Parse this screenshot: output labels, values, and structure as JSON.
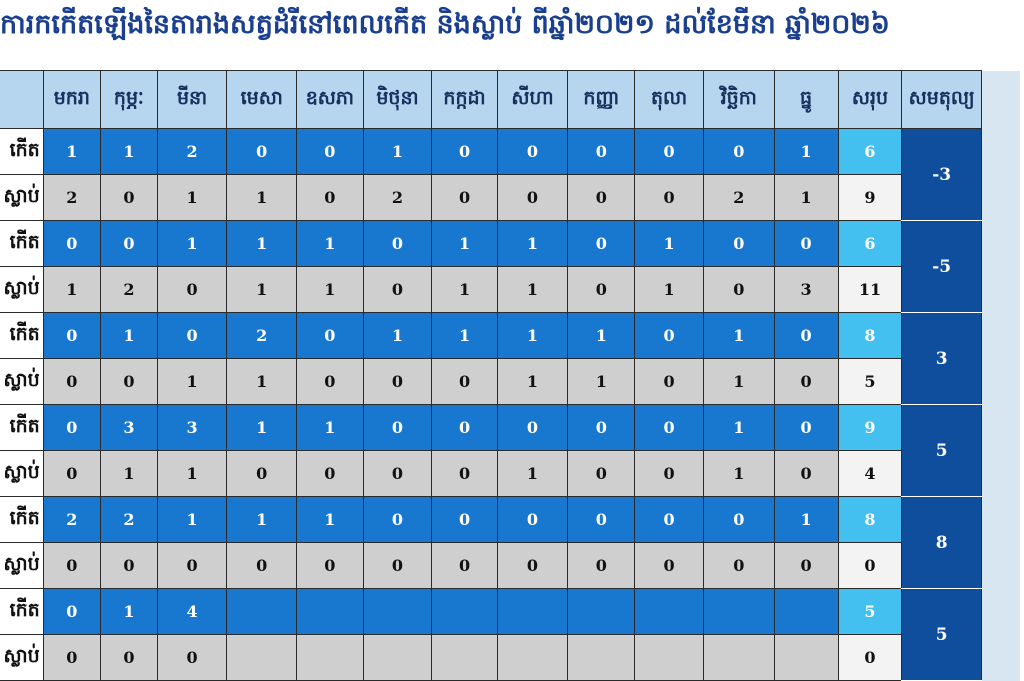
{
  "title": "ការកកើតឡើងនៃតារាងសត្វដំរីនៅពេលកើត និងស្លាប់ ពីឆ្នាំ២០២១ ដល់ខែមីនា ឆ្នាំ២០២៦",
  "chart_data": {
    "type": "table",
    "columns": [
      "មករា",
      "កុម្ភៈ",
      "មីនា",
      "មេសា",
      "ឧសភា",
      "មិថុនា",
      "កក្កដា",
      "សីហា",
      "កញ្ញា",
      "តុលា",
      "វិច្ឆិកា",
      "ធ្នូ",
      "សរុប",
      "សមតុល្យ"
    ],
    "row_labels": {
      "born": "កើត",
      "dead": "ស្លាប់"
    },
    "groups": [
      {
        "born": [
          "1",
          "1",
          "2",
          "0",
          "0",
          "1",
          "0",
          "0",
          "0",
          "0",
          "0",
          "1"
        ],
        "born_total": "6",
        "dead": [
          "2",
          "0",
          "1",
          "1",
          "0",
          "2",
          "0",
          "0",
          "0",
          "0",
          "2",
          "1"
        ],
        "dead_total": "9",
        "balance": "-3"
      },
      {
        "born": [
          "0",
          "0",
          "1",
          "1",
          "1",
          "0",
          "1",
          "1",
          "0",
          "1",
          "0",
          "0"
        ],
        "born_total": "6",
        "dead": [
          "1",
          "2",
          "0",
          "1",
          "1",
          "0",
          "1",
          "1",
          "0",
          "1",
          "0",
          "3"
        ],
        "dead_total": "11",
        "balance": "-5"
      },
      {
        "born": [
          "0",
          "1",
          "0",
          "2",
          "0",
          "1",
          "1",
          "1",
          "1",
          "0",
          "1",
          "0"
        ],
        "born_total": "8",
        "dead": [
          "0",
          "0",
          "1",
          "1",
          "0",
          "0",
          "0",
          "1",
          "1",
          "0",
          "1",
          "0"
        ],
        "dead_total": "5",
        "balance": "3"
      },
      {
        "born": [
          "0",
          "3",
          "3",
          "1",
          "1",
          "0",
          "0",
          "0",
          "0",
          "0",
          "1",
          "0"
        ],
        "born_total": "9",
        "dead": [
          "0",
          "1",
          "1",
          "0",
          "0",
          "0",
          "0",
          "1",
          "0",
          "0",
          "1",
          "0"
        ],
        "dead_total": "4",
        "balance": "5"
      },
      {
        "born": [
          "2",
          "2",
          "1",
          "1",
          "1",
          "0",
          "0",
          "0",
          "0",
          "0",
          "0",
          "1"
        ],
        "born_total": "8",
        "dead": [
          "0",
          "0",
          "0",
          "0",
          "0",
          "0",
          "0",
          "0",
          "0",
          "0",
          "0",
          "0"
        ],
        "dead_total": "0",
        "balance": "8"
      },
      {
        "born": [
          "0",
          "1",
          "4",
          "",
          "",
          "",
          "",
          "",
          "",
          "",
          "",
          ""
        ],
        "born_total": "5",
        "dead": [
          "0",
          "0",
          "0",
          "",
          "",
          "",
          "",
          "",
          "",
          "",
          "",
          ""
        ],
        "dead_total": "0",
        "balance": "5"
      }
    ]
  },
  "colors": {
    "header": "#b6d5ee",
    "born_row": "#1878d0",
    "born_total": "#43bff0",
    "dead_row": "#cfcfcf",
    "dead_total": "#f3f3f3",
    "balance": "#0f4e9c",
    "title": "#1a3f8f"
  }
}
